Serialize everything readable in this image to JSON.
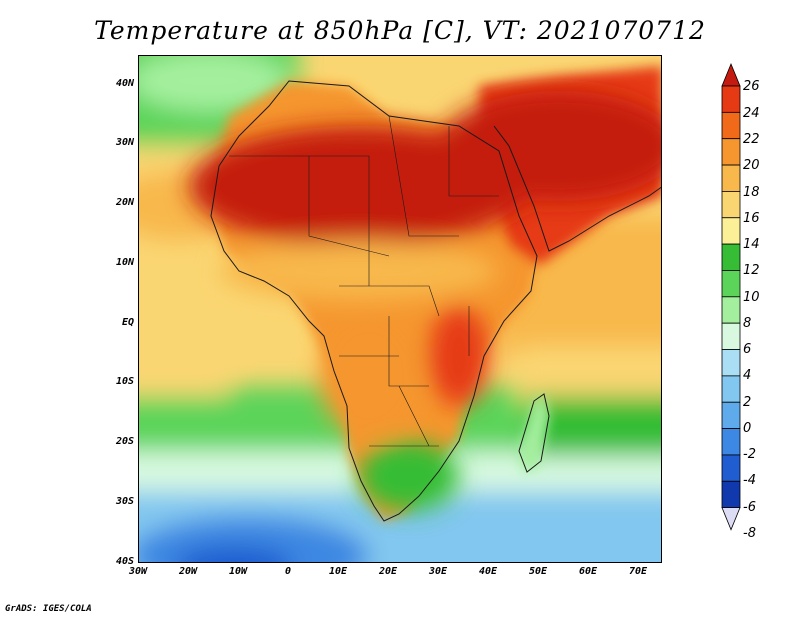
{
  "title": "Temperature at 850hPa [C], VT: 2021070712",
  "footer": "GrADS: IGES/COLA",
  "map": {
    "region": "Africa",
    "lon_range": [
      -30,
      75
    ],
    "lat_range": [
      -40,
      45
    ],
    "x_ticks": [
      "30W",
      "20W",
      "10W",
      "0",
      "10E",
      "20E",
      "30E",
      "40E",
      "50E",
      "60E",
      "70E"
    ],
    "y_ticks": [
      "40N",
      "30N",
      "20N",
      "10N",
      "EQ",
      "10S",
      "20S",
      "30S",
      "40S"
    ]
  },
  "colorbar": {
    "labels": [
      "26",
      "24",
      "22",
      "20",
      "18",
      "16",
      "14",
      "12",
      "10",
      "8",
      "6",
      "4",
      "2",
      "0",
      "-2",
      "-4",
      "-6",
      "-8"
    ],
    "colors": [
      "#c41a10",
      "#e63a14",
      "#f06a1a",
      "#f5962e",
      "#f8b84c",
      "#fad672",
      "#fbef98",
      "#36bd35",
      "#5cd45a",
      "#a4ef9e",
      "#d8f9e0",
      "#a9def4",
      "#82c7ef",
      "#5eaaea",
      "#3d88e2",
      "#1f5dd0",
      "#0f39ad",
      "#0b1f80"
    ]
  }
}
